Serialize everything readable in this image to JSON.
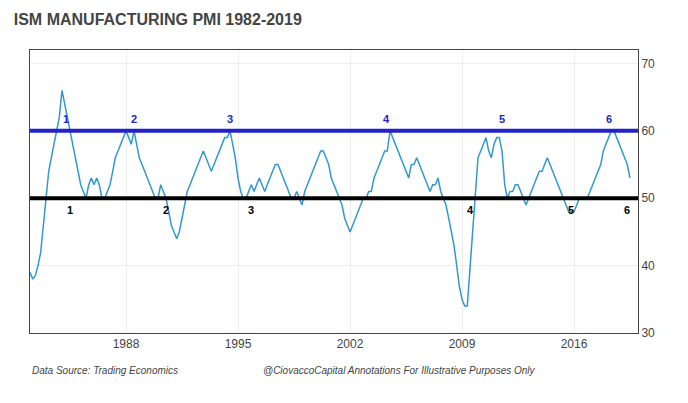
{
  "chart_data": {
    "type": "line",
    "title": "ISM MANUFACTURING PMI 1982-2019",
    "x": [
      1982.0,
      1982.17,
      1982.33,
      1982.5,
      1982.67,
      1982.83,
      1983.0,
      1983.17,
      1983.33,
      1983.5,
      1983.67,
      1983.83,
      1984.0,
      1984.17,
      1984.33,
      1984.5,
      1984.67,
      1984.83,
      1985.0,
      1985.17,
      1985.33,
      1985.5,
      1985.67,
      1985.83,
      1986.0,
      1986.17,
      1986.33,
      1986.5,
      1986.67,
      1986.83,
      1987.0,
      1987.17,
      1987.33,
      1987.5,
      1987.67,
      1987.83,
      1988.0,
      1988.17,
      1988.33,
      1988.5,
      1988.67,
      1988.83,
      1989.0,
      1989.17,
      1989.33,
      1989.5,
      1989.67,
      1989.83,
      1990.0,
      1990.17,
      1990.33,
      1990.5,
      1990.67,
      1990.83,
      1991.0,
      1991.17,
      1991.33,
      1991.5,
      1991.67,
      1991.83,
      1992.0,
      1992.17,
      1992.33,
      1992.5,
      1992.67,
      1992.83,
      1993.0,
      1993.17,
      1993.33,
      1993.5,
      1993.67,
      1993.83,
      1994.0,
      1994.17,
      1994.33,
      1994.5,
      1994.67,
      1994.83,
      1995.0,
      1995.17,
      1995.33,
      1995.5,
      1995.67,
      1995.83,
      1996.0,
      1996.17,
      1996.33,
      1996.5,
      1996.67,
      1996.83,
      1997.0,
      1997.17,
      1997.33,
      1997.5,
      1997.67,
      1997.83,
      1998.0,
      1998.17,
      1998.33,
      1998.5,
      1998.67,
      1998.83,
      1999.0,
      1999.17,
      1999.33,
      1999.5,
      1999.67,
      1999.83,
      2000.0,
      2000.17,
      2000.33,
      2000.5,
      2000.67,
      2000.83,
      2001.0,
      2001.17,
      2001.33,
      2001.5,
      2001.67,
      2001.83,
      2002.0,
      2002.17,
      2002.33,
      2002.5,
      2002.67,
      2002.83,
      2003.0,
      2003.17,
      2003.33,
      2003.5,
      2003.67,
      2003.83,
      2004.0,
      2004.17,
      2004.33,
      2004.5,
      2004.67,
      2004.83,
      2005.0,
      2005.17,
      2005.33,
      2005.5,
      2005.67,
      2005.83,
      2006.0,
      2006.17,
      2006.33,
      2006.5,
      2006.67,
      2006.83,
      2007.0,
      2007.17,
      2007.33,
      2007.5,
      2007.67,
      2007.83,
      2008.0,
      2008.17,
      2008.33,
      2008.5,
      2008.67,
      2008.83,
      2009.0,
      2009.17,
      2009.33,
      2009.5,
      2009.67,
      2009.83,
      2010.0,
      2010.17,
      2010.33,
      2010.5,
      2010.67,
      2010.83,
      2011.0,
      2011.17,
      2011.33,
      2011.5,
      2011.67,
      2011.83,
      2012.0,
      2012.17,
      2012.33,
      2012.5,
      2012.67,
      2012.83,
      2013.0,
      2013.17,
      2013.33,
      2013.5,
      2013.67,
      2013.83,
      2014.0,
      2014.17,
      2014.33,
      2014.5,
      2014.67,
      2014.83,
      2015.0,
      2015.17,
      2015.33,
      2015.5,
      2015.67,
      2015.83,
      2016.0,
      2016.17,
      2016.33,
      2016.5,
      2016.67,
      2016.83,
      2017.0,
      2017.17,
      2017.33,
      2017.5,
      2017.67,
      2017.83,
      2018.0,
      2018.17,
      2018.33,
      2018.5,
      2018.67,
      2018.83,
      2019.0,
      2019.17,
      2019.33,
      2019.5
    ],
    "values": [
      39,
      38,
      38.5,
      40,
      42,
      46,
      50,
      54,
      56,
      58,
      60,
      62,
      66,
      64,
      62,
      60,
      58,
      56,
      54,
      52,
      51,
      50,
      52,
      53,
      52,
      53,
      52,
      50,
      50,
      51,
      52,
      54,
      56,
      57,
      58,
      59,
      60,
      59,
      58,
      60,
      58,
      56,
      55,
      54,
      53,
      52,
      51,
      50,
      50,
      52,
      51,
      50,
      48,
      46,
      45,
      44,
      45,
      47,
      49,
      51,
      52,
      53,
      54,
      55,
      56,
      57,
      56,
      55,
      54,
      55,
      56,
      57,
      58,
      59,
      59,
      60,
      58,
      56,
      53,
      51,
      50,
      50,
      51,
      52,
      51,
      52,
      53,
      52,
      51,
      52,
      53,
      54,
      55,
      55,
      54,
      53,
      52,
      51,
      50,
      50,
      51,
      50,
      49,
      51,
      52,
      53,
      54,
      55,
      56,
      57,
      57,
      56,
      55,
      53,
      52,
      51,
      50,
      49,
      47,
      46,
      45,
      46,
      47,
      48,
      49,
      50,
      50,
      51,
      51,
      53,
      54,
      55,
      56,
      57,
      57,
      60,
      59,
      58,
      57,
      56,
      55,
      54,
      53,
      55,
      55,
      56,
      55,
      54,
      53,
      52,
      51,
      52,
      52,
      53,
      51,
      50,
      49,
      47,
      45,
      43,
      40,
      37,
      35,
      34,
      34,
      40,
      45,
      50,
      56,
      57,
      58,
      59,
      57,
      56,
      58,
      59,
      59,
      57,
      52,
      50,
      51,
      51,
      52,
      52,
      51,
      50,
      49,
      50,
      51,
      52,
      53,
      54,
      54,
      55,
      56,
      55,
      54,
      53,
      52,
      51,
      50,
      49,
      48,
      48,
      48,
      49,
      50,
      50,
      50,
      50,
      51,
      52,
      53,
      54,
      55,
      57,
      58,
      59,
      60,
      60,
      59,
      58,
      57,
      56,
      55,
      53
    ],
    "color": "#3399CC",
    "reference_lines": [
      {
        "y": 60,
        "color": "#2222CC",
        "label_position": "above",
        "labels": [
          {
            "x": 1984.25,
            "text": "1"
          },
          {
            "x": 1988.5,
            "text": "2"
          },
          {
            "x": 1994.5,
            "text": "3"
          },
          {
            "x": 2004.25,
            "text": "4"
          },
          {
            "x": 2011.5,
            "text": "5"
          },
          {
            "x": 2018.2,
            "text": "6"
          }
        ]
      },
      {
        "y": 50,
        "color": "#000000",
        "label_position": "below",
        "labels": [
          {
            "x": 1984.5,
            "text": "1"
          },
          {
            "x": 1990.5,
            "text": "2"
          },
          {
            "x": 1995.8,
            "text": "3"
          },
          {
            "x": 2009.5,
            "text": "4"
          },
          {
            "x": 2015.8,
            "text": "5"
          },
          {
            "x": 2019.3,
            "text": "6"
          }
        ]
      }
    ],
    "footnotes": [
      "Data Source: Trading Economics",
      "@CiovaccoCapital Annotations For Illustrative Purposes Only"
    ],
    "xlim": [
      1982.0,
      2020.0
    ],
    "xticks": [
      1988,
      1995,
      2002,
      2009,
      2016
    ],
    "ylim": [
      30,
      72
    ],
    "yticks": [
      30,
      40,
      50,
      60,
      70
    ],
    "grid": true
  }
}
